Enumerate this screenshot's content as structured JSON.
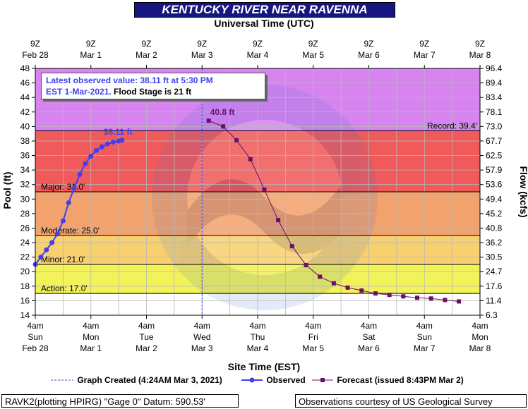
{
  "title": "KENTUCKY RIVER NEAR RAVENNA",
  "top_axis_title": "Universal Time (UTC)",
  "bottom_axis_title": "Site Time (EST)",
  "info_box": {
    "line1_blue": "Latest observed value: 38.11 ft at 5:30 PM",
    "line2_blue": "EST 1-Mar-2021.",
    "line2_black": " Flood Stage is 21 ft"
  },
  "legend": {
    "graph_created": "Graph Created (4:24AM Mar 3, 2021)",
    "observed": "Observed",
    "forecast": "Forecast (issued 8:43PM Mar 2)"
  },
  "footer": {
    "left": "RAVK2(plotting HPIRG) \"Gage 0\" Datum: 590.53'",
    "right": "Observations courtesy of US Geological Survey"
  },
  "colors": {
    "title_bg": "#161680",
    "observed": "#3f3ff0",
    "forecast": "#6b0f6b",
    "record_zone": "#d884f0",
    "major_zone": "#f05a5a",
    "moderate_zone": "#f3a26c",
    "minor_zone": "#f8d070",
    "action_zone": "#f2f25a",
    "plot_bg": "#ffffff"
  },
  "chart_data": {
    "type": "line",
    "ylabel_left": "Pool (ft)",
    "ylabel_right": "Flow (kcfs)",
    "ylim": [
      14,
      48
    ],
    "y_ticks": [
      14,
      16,
      18,
      20,
      22,
      24,
      26,
      28,
      30,
      32,
      34,
      36,
      38,
      40,
      42,
      44,
      46,
      48
    ],
    "y2_ticks": [
      "6.3",
      "11.4",
      "17.6",
      "24.7",
      "30.5",
      "36.2",
      "40.8",
      "45.2",
      "49.4",
      "53.6",
      "57.9",
      "62.5",
      "67.7",
      "73.0",
      "78.1",
      "83.4",
      "89.4",
      "96.4"
    ],
    "top_ticks": [
      {
        "l1": "9Z",
        "l2": "Feb 28"
      },
      {
        "l1": "9Z",
        "l2": "Mar 1"
      },
      {
        "l1": "9Z",
        "l2": "Mar 2"
      },
      {
        "l1": "9Z",
        "l2": "Mar 3"
      },
      {
        "l1": "9Z",
        "l2": "Mar 4"
      },
      {
        "l1": "9Z",
        "l2": "Mar 5"
      },
      {
        "l1": "9Z",
        "l2": "Mar 6"
      },
      {
        "l1": "9Z",
        "l2": "Mar 7"
      },
      {
        "l1": "9Z",
        "l2": "Mar 8"
      }
    ],
    "bottom_ticks": [
      {
        "l1": "4am",
        "l2": "Sun",
        "l3": "Feb 28"
      },
      {
        "l1": "4am",
        "l2": "Mon",
        "l3": "Mar 1"
      },
      {
        "l1": "4am",
        "l2": "Tue",
        "l3": "Mar 2"
      },
      {
        "l1": "4am",
        "l2": "Wed",
        "l3": "Mar 3"
      },
      {
        "l1": "4am",
        "l2": "Thu",
        "l3": "Mar 4"
      },
      {
        "l1": "4am",
        "l2": "Fri",
        "l3": "Mar 5"
      },
      {
        "l1": "4am",
        "l2": "Sat",
        "l3": "Mar 6"
      },
      {
        "l1": "4am",
        "l2": "Sun",
        "l3": "Mar 7"
      },
      {
        "l1": "4am",
        "l2": "Mon",
        "l3": "Mar 8"
      }
    ],
    "stages": [
      {
        "name": "Action",
        "label": "Action: 17.0'",
        "value": 17.0
      },
      {
        "name": "Minor",
        "label": "Minor: 21.0'",
        "value": 21.0
      },
      {
        "name": "Moderate",
        "label": "Moderate: 25.0'",
        "value": 25.0
      },
      {
        "name": "Major",
        "label": "Major: 31.0'",
        "value": 31.0
      },
      {
        "name": "Record",
        "label": "Record: 39.4'",
        "value": 39.4
      }
    ],
    "graph_created_day": 3.0,
    "series": [
      {
        "name": "Observed",
        "x_unit": "days after 4am EST Feb 28",
        "x": [
          0.0,
          0.1,
          0.2,
          0.3,
          0.4,
          0.5,
          0.6,
          0.7,
          0.8,
          0.9,
          1.0,
          1.1,
          1.2,
          1.3,
          1.4,
          1.5,
          1.56
        ],
        "y": [
          21.0,
          22.0,
          23.0,
          24.0,
          25.2,
          27.0,
          29.5,
          31.5,
          33.4,
          34.9,
          35.9,
          36.7,
          37.2,
          37.6,
          37.85,
          38.0,
          38.11
        ],
        "point_label": "38.11 ft"
      },
      {
        "name": "Forecast",
        "x_unit": "days after 4am EST Feb 28",
        "x": [
          3.12,
          3.38,
          3.62,
          3.87,
          4.12,
          4.37,
          4.62,
          4.87,
          5.12,
          5.37,
          5.62,
          5.87,
          6.12,
          6.37,
          6.62,
          6.87,
          7.12,
          7.37,
          7.62
        ],
        "y": [
          40.8,
          40.0,
          38.1,
          35.5,
          31.3,
          27.1,
          23.5,
          20.9,
          19.3,
          18.4,
          17.8,
          17.4,
          17.0,
          16.8,
          16.6,
          16.4,
          16.3,
          16.1,
          15.9
        ],
        "point_label": "40.8 ft"
      }
    ]
  }
}
